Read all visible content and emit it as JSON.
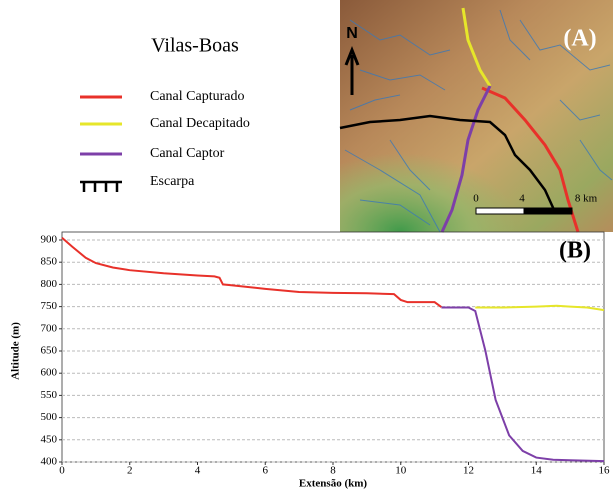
{
  "title": "Vilas-Boas",
  "map": {
    "panel_label": "(A)",
    "north": "N",
    "scale_labels": [
      "0",
      "4",
      "8 km"
    ],
    "escarpa": {
      "name": "Escarpa",
      "color": "#000000"
    }
  },
  "chart_data": {
    "type": "line",
    "panel_label": "(B)",
    "x_label": "Extensão (km)",
    "y_label": "Altitude (m)",
    "xlim": [
      0,
      16
    ],
    "xticks": [
      0,
      2,
      4,
      6,
      8,
      10,
      12,
      14,
      16
    ],
    "ylim": [
      400,
      900
    ],
    "yticks": [
      400,
      450,
      500,
      550,
      600,
      650,
      700,
      750,
      800,
      850,
      900
    ],
    "grid": true,
    "series": [
      {
        "name": "Canal Capturado",
        "color": "#e8312a",
        "x": [
          0,
          0.3,
          0.7,
          1,
          1.5,
          2,
          3,
          4,
          4.5,
          4.65,
          4.75,
          5,
          6,
          7,
          8,
          9,
          9.8,
          10,
          10.2,
          11,
          11.2
        ],
        "values": [
          905,
          885,
          860,
          848,
          838,
          832,
          825,
          820,
          818,
          815,
          800,
          798,
          790,
          783,
          781,
          780,
          778,
          765,
          760,
          760,
          749
        ]
      },
      {
        "name": "Canal Decapitado",
        "color": "#e6e62a",
        "x": [
          12.2,
          13,
          14,
          14.6,
          15,
          15.5,
          16
        ],
        "values": [
          748,
          748,
          750,
          752,
          750,
          748,
          742
        ]
      },
      {
        "name": "Canal Captor",
        "color": "#7d3fa8",
        "x": [
          11.2,
          12,
          12.2,
          12.5,
          12.8,
          13.2,
          13.6,
          14,
          14.5,
          15,
          16
        ],
        "values": [
          748,
          748,
          740,
          650,
          540,
          460,
          425,
          410,
          405,
          404,
          402
        ]
      }
    ]
  }
}
